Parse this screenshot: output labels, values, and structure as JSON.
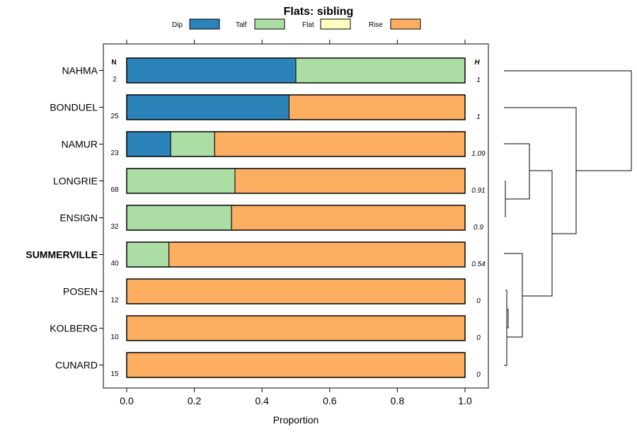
{
  "chart_data": {
    "type": "bar",
    "stacked": true,
    "orientation": "horizontal",
    "title": "Flats: sibling",
    "xlabel": "Proportion",
    "xlim": [
      -0.05,
      1.05
    ],
    "xticks": [
      0.0,
      0.2,
      0.4,
      0.6,
      0.8,
      1.0
    ],
    "xtick_labels": [
      "0.0",
      "0.2",
      "0.4",
      "0.6",
      "0.8",
      "1.0"
    ],
    "n_header": "N",
    "h_header": "H",
    "legend": [
      {
        "name": "Dip",
        "color": "#2b83ba"
      },
      {
        "name": "Talf",
        "color": "#abdda4"
      },
      {
        "name": "Flat",
        "color": "#ffffbf"
      },
      {
        "name": "Rise",
        "color": "#fdae61"
      }
    ],
    "categories": [
      "NAHMA",
      "BONDUEL",
      "NAMUR",
      "LONGRIE",
      "ENSIGN",
      "SUMMERVILLE",
      "POSEN",
      "KOLBERG",
      "CUNARD"
    ],
    "highlighted": [
      "SUMMERVILLE"
    ],
    "n": [
      "2",
      "25",
      "23",
      "68",
      "32",
      "40",
      "12",
      "10",
      "15"
    ],
    "h": [
      "1",
      "1",
      "1.09",
      "0.91",
      "0.9",
      "0.54",
      "0",
      "0",
      "0"
    ],
    "series": [
      {
        "name": "Dip",
        "values": [
          0.5,
          0.48,
          0.13,
          0.0,
          0.0,
          0.0,
          0.0,
          0.0,
          0.0
        ]
      },
      {
        "name": "Talf",
        "values": [
          0.5,
          0.0,
          0.13,
          0.32,
          0.31,
          0.125,
          0.0,
          0.0,
          0.0
        ]
      },
      {
        "name": "Flat",
        "values": [
          0.0,
          0.0,
          0.0,
          0.0,
          0.0,
          0.0,
          0.0,
          0.0,
          0.0
        ]
      },
      {
        "name": "Rise",
        "values": [
          0.0,
          0.52,
          0.74,
          0.68,
          0.69,
          0.875,
          1.0,
          1.0,
          1.0
        ]
      }
    ]
  }
}
